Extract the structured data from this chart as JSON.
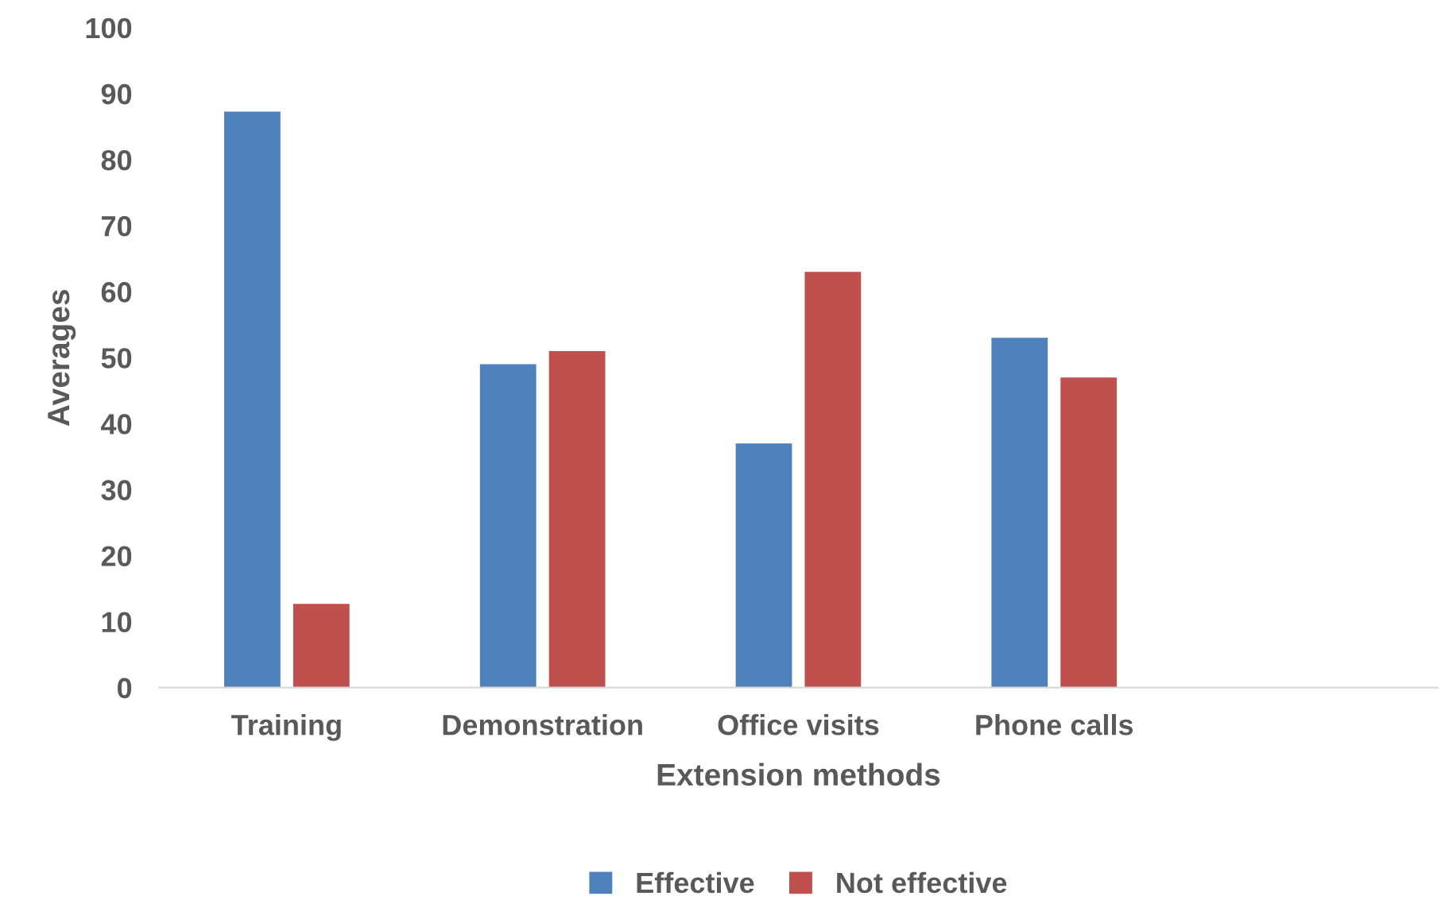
{
  "chart_data": {
    "type": "bar",
    "xlabel": "Extension methods",
    "ylabel": "Averages",
    "categories": [
      "Training",
      "Demonstration",
      "Office visits",
      "Phone calls",
      null
    ],
    "series": [
      {
        "name": "Effective",
        "color": "#4f81bd",
        "values": [
          87.3,
          49,
          37,
          53,
          null
        ]
      },
      {
        "name": "Not effective",
        "color": "#c0504d",
        "values": [
          12.7,
          51,
          63,
          47,
          null
        ]
      }
    ],
    "ylim": [
      0,
      100
    ],
    "yticks": [
      0,
      10,
      20,
      30,
      40,
      50,
      60,
      70,
      80,
      90,
      100
    ],
    "grid": false,
    "legend": "bottom"
  }
}
